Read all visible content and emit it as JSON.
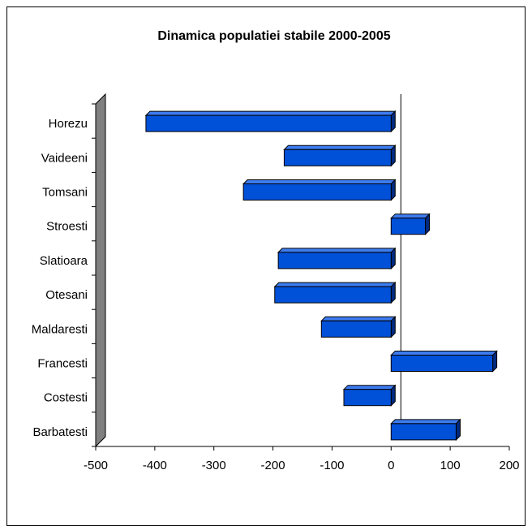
{
  "chart_data": {
    "type": "bar",
    "orientation": "horizontal",
    "title": "Dinamica populatiei stabile 2000-2005",
    "xlabel": "",
    "ylabel": "",
    "categories": [
      "Barbatesti",
      "Costesti",
      "Francesti",
      "Maldaresti",
      "Otesani",
      "Slatioara",
      "Stroesti",
      "Tomsani",
      "Vaideeni",
      "Horezu"
    ],
    "values": [
      110,
      -80,
      172,
      -118,
      -197,
      -191,
      58,
      -250,
      -181,
      -415
    ],
    "xlim": [
      -500,
      200
    ],
    "xticks": [
      -500,
      -400,
      -300,
      -200,
      -100,
      0,
      100,
      200
    ],
    "xtick_labels": [
      "-500",
      "-400",
      "-300",
      "-200",
      "-100",
      "0",
      "100",
      "200"
    ],
    "bar_color": "#0050d8",
    "bar_top_color": "#3d7cf0",
    "bar_side_color": "#002a80",
    "wall_color": "#808080",
    "grid": false,
    "legend": "none"
  }
}
